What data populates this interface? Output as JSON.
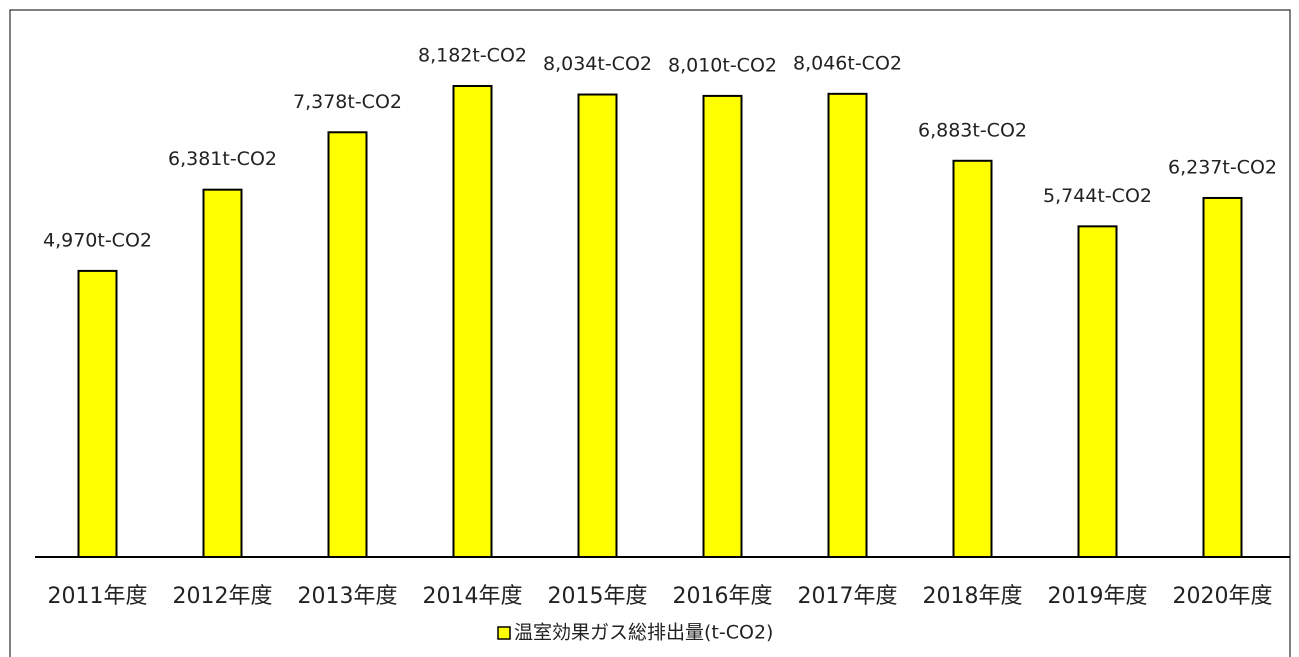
{
  "chart_data": {
    "type": "bar",
    "categories": [
      "2011年度",
      "2012年度",
      "2013年度",
      "2014年度",
      "2015年度",
      "2016年度",
      "2017年度",
      "2018年度",
      "2019年度",
      "2020年度"
    ],
    "series": [
      {
        "name": "温室効果ガス総排出量(t-CO2)",
        "color": "#ffff00",
        "values": [
          4970,
          6381,
          7378,
          8182,
          8034,
          8010,
          8046,
          6883,
          5744,
          6237
        ],
        "value_labels": [
          "4,970t-CO2",
          "6,381t-CO2",
          "7,378t-CO2",
          "8,182t-CO2",
          "8,034t-CO2",
          "8,010t-CO2",
          "8,046t-CO2",
          "6,883t-CO2",
          "5,744t-CO2",
          "6,237t-CO2"
        ]
      }
    ],
    "legend": "bottom"
  }
}
